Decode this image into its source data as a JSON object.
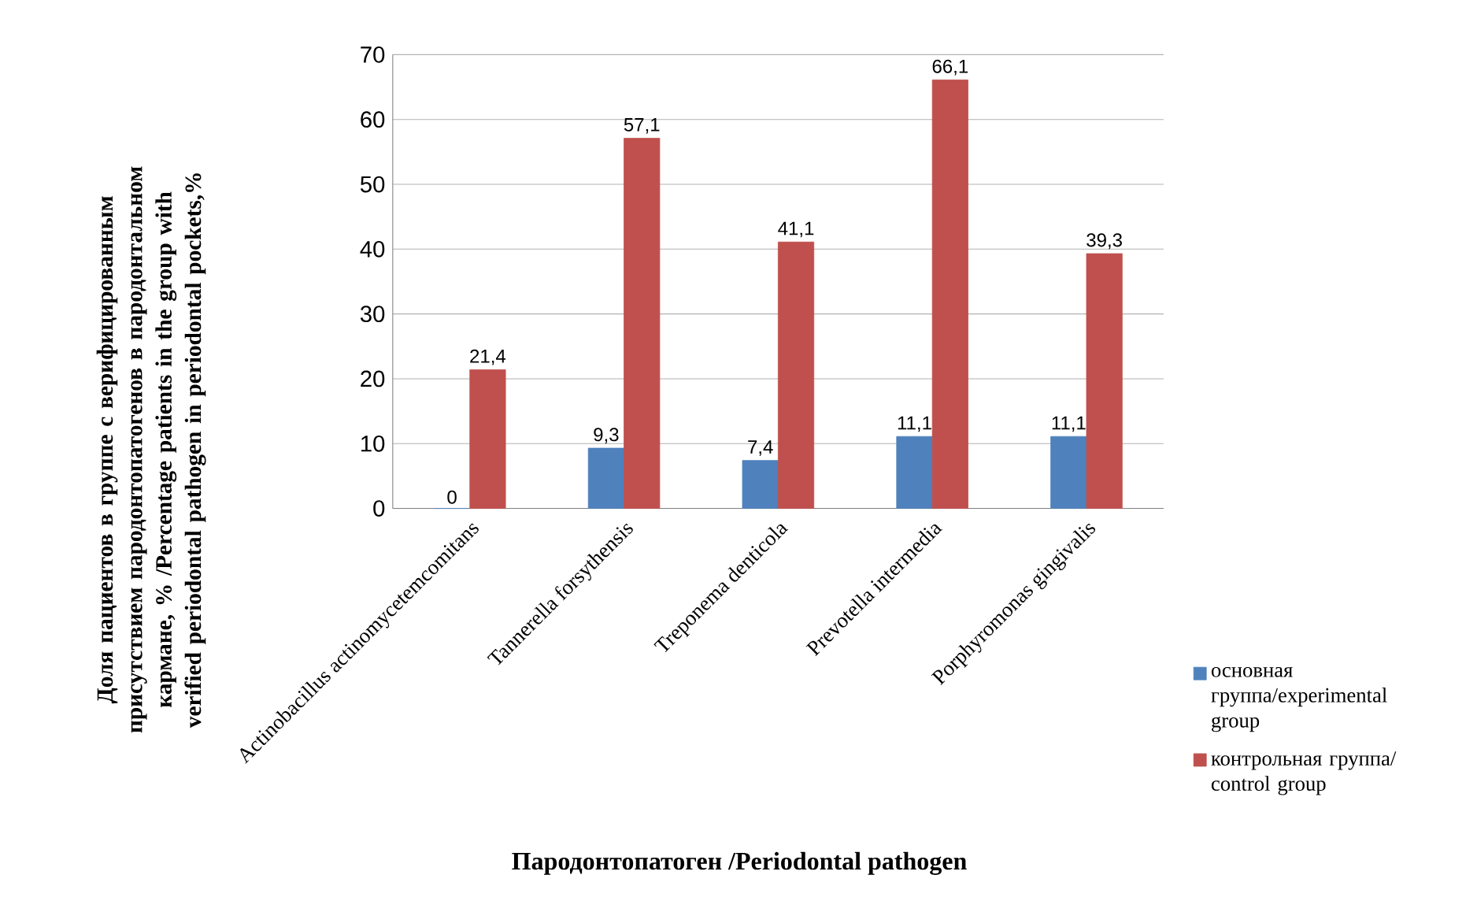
{
  "chart_data": {
    "type": "bar",
    "xlabel": "Пародонтопатоген /Periodontal pathogen",
    "ylabel": "Доля пациентов в группе с верифицированным присутствием пародонтопатогенов в пародонтальном кармане, % /Percentage patients in the group with verified periodontal pathogen in periodontal pockets,%",
    "categories": [
      "Actinobacillus actinomycetemcomitans",
      "Tannerella forsythensis",
      "Treponema denticola",
      "Prevotella intermedia",
      "Porphyromonas gingivalis"
    ],
    "series": [
      {
        "name": "основная группа/experimental group",
        "color": "#4f81bd",
        "values": [
          0,
          9.3,
          7.4,
          11.1,
          11.1
        ],
        "value_labels": [
          "0",
          "9,3",
          "7,4",
          "11,1",
          "11,1"
        ]
      },
      {
        "name": "контрольная группа/ control group",
        "color": "#c0504d",
        "values": [
          21.4,
          57.1,
          41.1,
          66.1,
          39.3
        ],
        "value_labels": [
          "21,4",
          "57,1",
          "41,1",
          "66,1",
          "39,3"
        ]
      }
    ],
    "ylim": [
      0,
      70
    ],
    "yticks": [
      0,
      10,
      20,
      30,
      40,
      50,
      60,
      70
    ],
    "grid": "y",
    "legend": "right"
  }
}
